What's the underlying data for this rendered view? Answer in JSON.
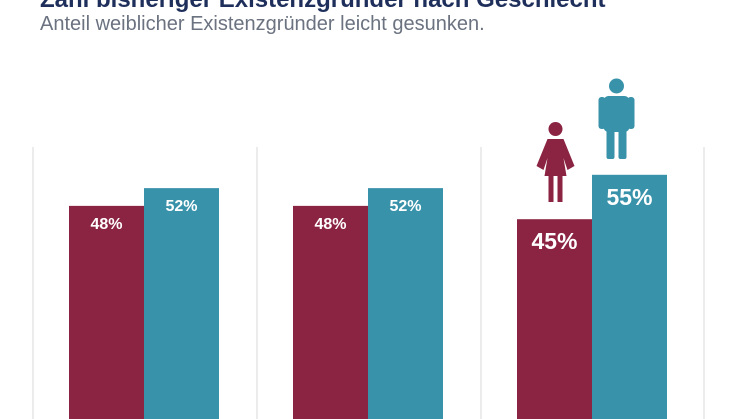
{
  "header": {
    "title": "Zahl bisheriger Existenzgründer nach Geschlecht",
    "subtitle": "Anteil weiblicher Existenzgründer leicht gesunken."
  },
  "chart_data": {
    "type": "bar",
    "categories": [
      "",
      "",
      ""
    ],
    "series": [
      {
        "name": "",
        "color": "#8b2342",
        "values": [
          48,
          48,
          45
        ],
        "labels": [
          "48%",
          "48%",
          "45%"
        ],
        "icon": "female-person-icon"
      },
      {
        "name": "",
        "color": "#3892aa",
        "values": [
          52,
          52,
          55
        ],
        "labels": [
          "52%",
          "52%",
          "55%"
        ],
        "icon": "male-person-icon"
      }
    ],
    "grid": true,
    "legend": "none",
    "highlight_group": 2
  }
}
